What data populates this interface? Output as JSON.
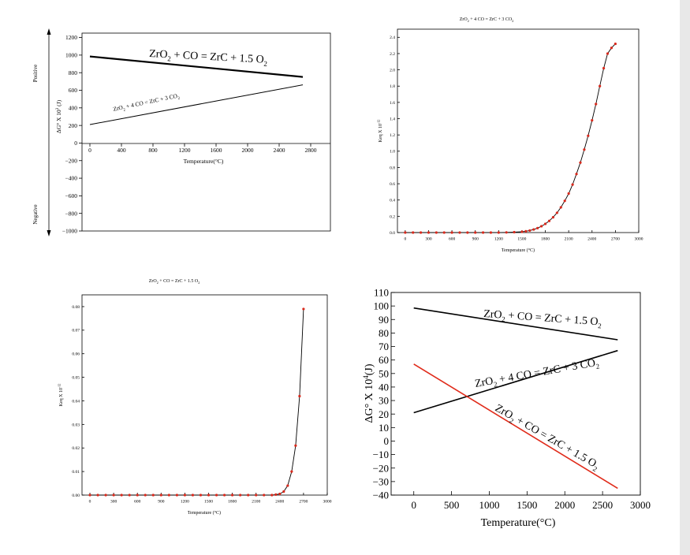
{
  "colors": {
    "black": "#000000",
    "red": "#e02b1a",
    "marker": "#d9291c"
  },
  "chart_data": [
    {
      "id": "p1",
      "type": "line",
      "xlabel": "Temperature(°C)",
      "ylabel_main": "ΔG° X 10",
      "ylabel_exp": "3",
      "ylabel_unit": " (J)",
      "positive_label": "Positive",
      "negative_label": "Negative",
      "xlim": [
        -100,
        3050
      ],
      "ylim": [
        -1000,
        1250
      ],
      "xticks": [
        0,
        400,
        800,
        1200,
        1600,
        2000,
        2400,
        2800
      ],
      "xtick_labels": [
        "0",
        "400",
        "800",
        "1200",
        "1600",
        "2000",
        "2400",
        "2800"
      ],
      "yticks": [
        1200,
        1000,
        800,
        600,
        400,
        200,
        0,
        -200,
        -400,
        -600,
        -800,
        -1000
      ],
      "ytick_labels": [
        "1200",
        "1000",
        "800",
        "600",
        "400",
        "200",
        "0",
        "−200",
        "−400",
        "−600",
        "−800",
        "−1000"
      ],
      "series": [
        {
          "name": "ZrO2 + CO = ZrC + 1.5 O2",
          "x": [
            0,
            2700
          ],
          "y": [
            985,
            752
          ],
          "width": 2.2
        },
        {
          "name": "ZrO2 + 4 CO = ZrC + 3 CO2",
          "x": [
            0,
            2700
          ],
          "y": [
            210,
            662
          ],
          "width": 1
        }
      ],
      "ann1": {
        "a": "ZrO",
        "b": "2",
        "c": " + CO  = ZrC + 1.5 O",
        "d": "2"
      },
      "ann2": {
        "a": "ZrO",
        "b": "2",
        "c": " + 4 CO = ZrC + 3 CO",
        "d": "2"
      }
    },
    {
      "id": "p2",
      "type": "line",
      "title": {
        "a": "ZrO",
        "b": "2",
        "c": " + 4 CO = ZrC + 3 CO",
        "d": "2"
      },
      "xlabel": "Temperature (°C)",
      "ylabel_main": "Keq X 10",
      "ylabel_exp": "-12",
      "xlim": [
        -100,
        3000
      ],
      "ylim": [
        0,
        2.5
      ],
      "xticks": [
        0,
        300,
        600,
        900,
        1200,
        1500,
        1800,
        2100,
        2400,
        2700,
        3000
      ],
      "xtick_labels": [
        "0",
        "300",
        "600",
        "900",
        "1200",
        "1500",
        "1800",
        "2100",
        "2400",
        "2700",
        "3000"
      ],
      "yticks": [
        0,
        0.2,
        0.4,
        0.6,
        0.8,
        1.0,
        1.2,
        1.4,
        1.6,
        1.8,
        2.0,
        2.2,
        2.4
      ],
      "ytick_labels": [
        "0.0",
        "0.2",
        "0.4",
        "0.6",
        "0.8",
        "1.0",
        "1.2",
        "1.4",
        "1.6",
        "1.8",
        "2.0",
        "2.2",
        "2.4"
      ],
      "series": [
        {
          "name": "Keq",
          "x": [
            0,
            100,
            200,
            300,
            400,
            500,
            600,
            700,
            800,
            900,
            1000,
            1100,
            1200,
            1300,
            1400,
            1500,
            1550,
            1600,
            1650,
            1700,
            1750,
            1800,
            1850,
            1900,
            1950,
            2000,
            2050,
            2100,
            2150,
            2200,
            2250,
            2300,
            2350,
            2400,
            2450,
            2500,
            2550,
            2600,
            2650,
            2700
          ],
          "y": [
            0,
            0,
            0,
            0,
            0,
            0,
            0,
            0,
            0,
            0,
            0,
            0,
            0,
            0.002,
            0.005,
            0.01,
            0.016,
            0.025,
            0.038,
            0.055,
            0.078,
            0.107,
            0.143,
            0.188,
            0.243,
            0.31,
            0.39,
            0.48,
            0.59,
            0.72,
            0.86,
            1.02,
            1.19,
            1.38,
            1.58,
            1.8,
            2.02,
            2.2,
            2.27,
            2.32
          ]
        }
      ]
    },
    {
      "id": "p3",
      "type": "line",
      "title": {
        "a": "ZrO",
        "b": "2",
        "c": " + CO  = ZrC + 1.5 O",
        "d": "2"
      },
      "xlabel": "Temperature (°C)",
      "ylabel_main": "Keq X 10",
      "ylabel_exp": "-12",
      "xlim": [
        -100,
        3000
      ],
      "ylim": [
        0,
        0.085
      ],
      "xticks": [
        0,
        300,
        600,
        900,
        1200,
        1500,
        1800,
        2100,
        2400,
        2700,
        3000
      ],
      "xtick_labels": [
        "0",
        "300",
        "600",
        "900",
        "1200",
        "1500",
        "1800",
        "2100",
        "2400",
        "2700",
        "3000"
      ],
      "yticks": [
        0,
        0.01,
        0.02,
        0.03,
        0.04,
        0.05,
        0.06,
        0.07,
        0.08
      ],
      "ytick_labels": [
        "0.00",
        "0.01",
        "0.02",
        "0.03",
        "0.04",
        "0.05",
        "0.06",
        "0.07",
        "0.08"
      ],
      "series": [
        {
          "name": "Keq",
          "x": [
            0,
            100,
            200,
            300,
            400,
            500,
            600,
            700,
            800,
            900,
            1000,
            1100,
            1200,
            1300,
            1400,
            1500,
            1600,
            1700,
            1800,
            1900,
            2000,
            2100,
            2200,
            2300,
            2350,
            2400,
            2450,
            2500,
            2550,
            2600,
            2650,
            2700
          ],
          "y": [
            0,
            0,
            0,
            0,
            0,
            0,
            0,
            0,
            0,
            0,
            0,
            0,
            0,
            0,
            0,
            0,
            0,
            0,
            0,
            0,
            0,
            0,
            0,
            0,
            0.0002,
            0.0005,
            0.0015,
            0.004,
            0.01,
            0.021,
            0.042,
            0.079
          ]
        }
      ]
    },
    {
      "id": "p4",
      "type": "line",
      "xlabel": "Temperature(°C)",
      "ylabel_main": "ΔG° X 10",
      "ylabel_exp": "4",
      "ylabel_unit": "(J)",
      "xlim": [
        -300,
        3000
      ],
      "ylim": [
        -40,
        110
      ],
      "xticks": [
        0,
        500,
        1000,
        1500,
        2000,
        2500,
        3000
      ],
      "xtick_labels": [
        "0",
        "500",
        "1000",
        "1500",
        "2000",
        "2500",
        "3000"
      ],
      "yticks": [
        110,
        100,
        90,
        80,
        70,
        60,
        50,
        40,
        30,
        20,
        10,
        0,
        -10,
        -20,
        -30,
        -40
      ],
      "ytick_labels": [
        "110",
        "100",
        "90",
        "80",
        "70",
        "60",
        "50",
        "40",
        "30",
        "20",
        "10",
        "0",
        "−10",
        "−20",
        "−30",
        "−40"
      ],
      "series": [
        {
          "name": "ZrO2 + CO = ZrC + 1.5 O2",
          "x": [
            0,
            2700
          ],
          "y": [
            98.5,
            75
          ],
          "color": "black"
        },
        {
          "name": "ZrO2 + 4 CO = ZrC + 3 CO2",
          "x": [
            0,
            2700
          ],
          "y": [
            21,
            67
          ],
          "color": "black"
        },
        {
          "name": "ZrO2 + CO = ZrC + 1.5 O2 (red)",
          "x": [
            0,
            2700
          ],
          "y": [
            57,
            -35
          ],
          "color": "red"
        }
      ],
      "ann1": {
        "a": "ZrO",
        "b": "2",
        "c": " + CO  = ZrC + 1.5 O",
        "d": "2"
      },
      "ann2": {
        "a": "ZrO",
        "b": "2",
        "c": " + 4 CO = ZrC + 3 CO",
        "d": "2"
      },
      "ann3": {
        "a": "ZrO",
        "b": "2",
        "c": " + CO  = ZrC + 1.5 O",
        "d": "2"
      }
    }
  ]
}
